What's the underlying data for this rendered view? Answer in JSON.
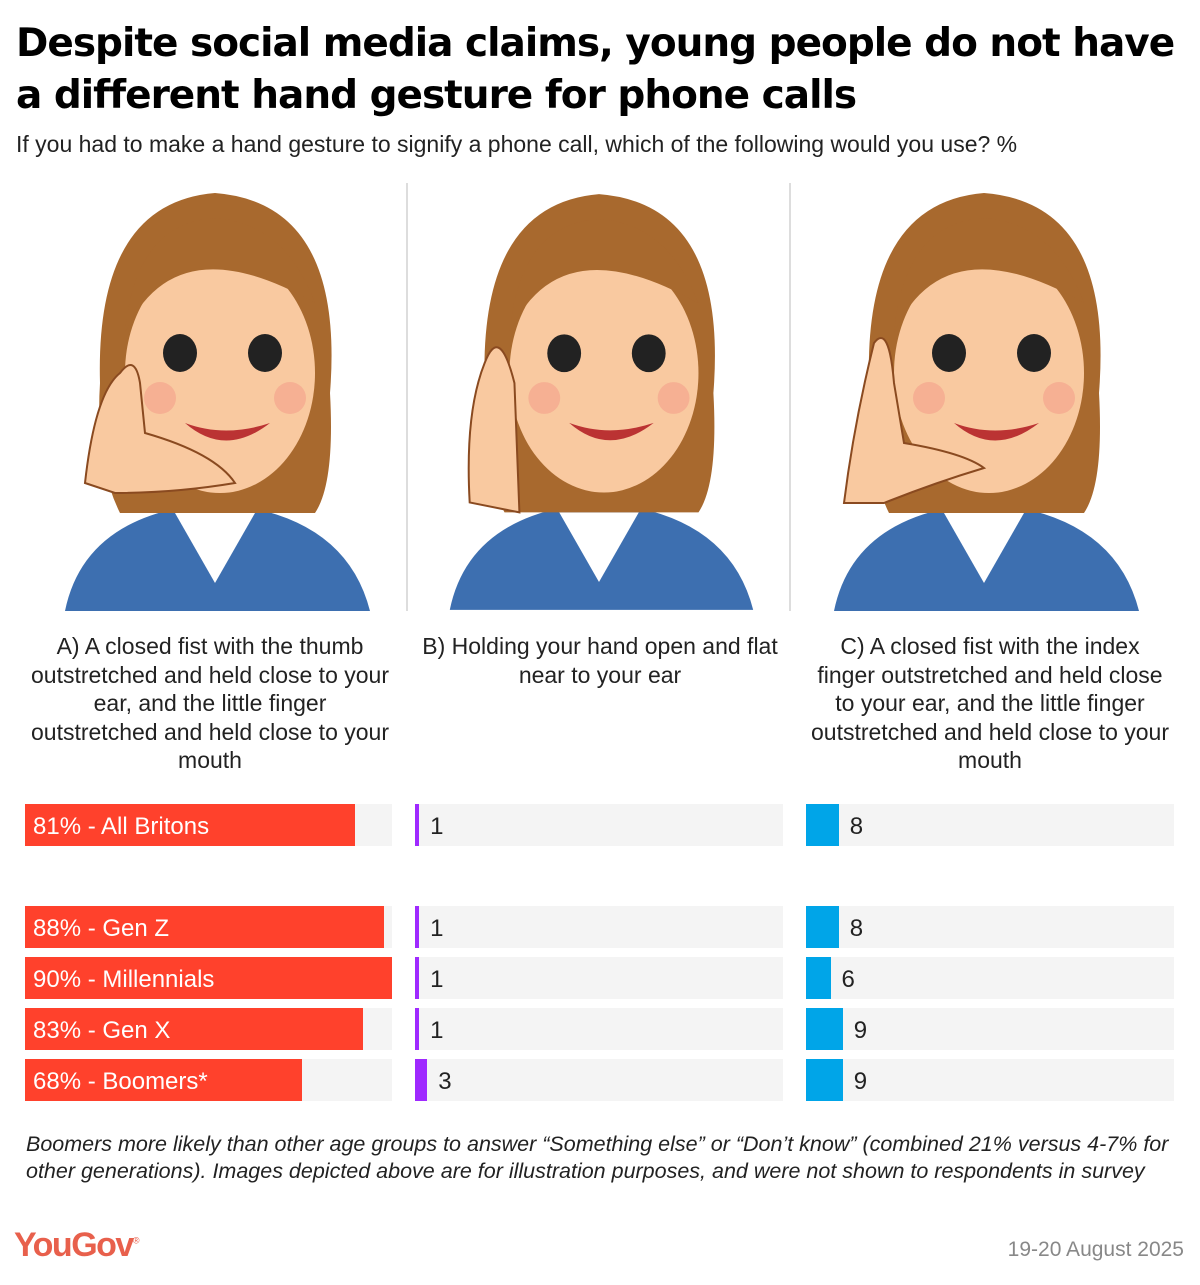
{
  "title": "Despite social media claims, young people do not have a different hand gesture for phone calls",
  "subtitle": "If you had to make a hand gesture to signify a phone call, which of the following would you use? %",
  "chart_data": {
    "type": "bar",
    "orientation": "horizontal",
    "max_value": 90,
    "categories": [
      "All Britons",
      "Gen Z",
      "Millennials",
      "Gen X",
      "Boomers*"
    ],
    "series": [
      {
        "name": "A) A closed fist with the thumb outstretched and held close to your ear, and the little finger outstretched and held close to your mouth",
        "color": "#ff412c",
        "values": [
          81,
          88,
          90,
          83,
          68
        ]
      },
      {
        "name": "B) Holding your hand open and flat near to your ear",
        "color": "#9f29ff",
        "values": [
          1,
          1,
          1,
          1,
          3
        ]
      },
      {
        "name": "C) A closed fist with the index finger outstretched and held close to your ear, and the little finger outstretched and held close to your mouth",
        "color": "#00a5e8",
        "values": [
          8,
          8,
          6,
          9,
          9
        ]
      }
    ],
    "data_labels_first": [
      "81% - All Britons",
      "88% - Gen Z",
      "90% - Millennials",
      "83% - Gen X",
      "68% - Boomers*"
    ]
  },
  "note": "Boomers more likely than other age groups to answer “Something else” or “Don’t know” (combined 21% versus 4-7% for other generations). Images depicted above are for illustration purposes, and were not shown to respondents in survey",
  "logo": "YouGov",
  "date": "19-20 August 2025"
}
